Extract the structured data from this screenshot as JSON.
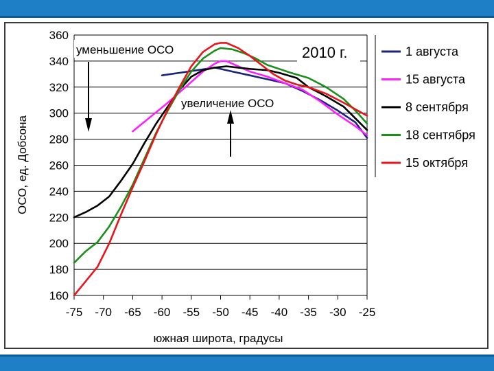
{
  "chart_data": {
    "type": "line",
    "xlabel": "южная широта, градусы",
    "ylabel": "ОСО, ед. Добсона",
    "xlim": [
      -75,
      -25
    ],
    "ylim": [
      160,
      360
    ],
    "x_ticks": [
      "-75",
      "-70",
      "-65",
      "-60",
      "-55",
      "-50",
      "-45",
      "-40",
      "-35",
      "-30",
      "-25"
    ],
    "y_ticks": [
      "160",
      "180",
      "200",
      "220",
      "240",
      "260",
      "280",
      "300",
      "320",
      "340",
      "360"
    ],
    "grid": "horizontal",
    "legend_position": "right",
    "year_label": "2010 г.",
    "annotations": {
      "decrease": "уменьшение ОСО",
      "increase": "увеличение ОСО"
    },
    "series": [
      {
        "name": "1 августа",
        "color": "#1a237e",
        "points": [
          [
            -60,
            329
          ],
          [
            -57,
            331
          ],
          [
            -54,
            333
          ],
          [
            -51,
            335
          ],
          [
            -48,
            332
          ],
          [
            -45,
            329
          ],
          [
            -42,
            326
          ],
          [
            -39,
            323
          ],
          [
            -36,
            317
          ],
          [
            -33,
            310
          ],
          [
            -30,
            302
          ],
          [
            -27,
            293
          ],
          [
            -25,
            281
          ]
        ]
      },
      {
        "name": "15 августа",
        "color": "#ff1fff",
        "points": [
          [
            -65,
            286
          ],
          [
            -62,
            297
          ],
          [
            -59,
            308
          ],
          [
            -56,
            320
          ],
          [
            -53,
            332
          ],
          [
            -51,
            338
          ],
          [
            -50,
            340
          ],
          [
            -49,
            340
          ],
          [
            -47,
            336
          ],
          [
            -45,
            332
          ],
          [
            -42,
            328
          ],
          [
            -39,
            323
          ],
          [
            -36,
            318
          ],
          [
            -33,
            309
          ],
          [
            -30,
            299
          ],
          [
            -27,
            290
          ],
          [
            -25,
            283
          ]
        ]
      },
      {
        "name": "8 сентября",
        "color": "#000000",
        "points": [
          [
            -75,
            220
          ],
          [
            -73,
            224
          ],
          [
            -71,
            229
          ],
          [
            -69,
            236
          ],
          [
            -67,
            248
          ],
          [
            -65,
            261
          ],
          [
            -63,
            277
          ],
          [
            -61,
            292
          ],
          [
            -59,
            305
          ],
          [
            -57,
            318
          ],
          [
            -55,
            328
          ],
          [
            -53,
            333
          ],
          [
            -51,
            335
          ],
          [
            -49,
            336
          ],
          [
            -47,
            335
          ],
          [
            -45,
            334
          ],
          [
            -42,
            333
          ],
          [
            -40,
            331
          ],
          [
            -37,
            327
          ],
          [
            -35,
            320
          ],
          [
            -32,
            313
          ],
          [
            -29,
            305
          ],
          [
            -25,
            287
          ]
        ]
      },
      {
        "name": "18 сентября",
        "color": "#1a8f1a",
        "points": [
          [
            -75,
            185
          ],
          [
            -73,
            194
          ],
          [
            -71,
            201
          ],
          [
            -69,
            213
          ],
          [
            -67,
            228
          ],
          [
            -65,
            245
          ],
          [
            -63,
            265
          ],
          [
            -61,
            285
          ],
          [
            -59,
            302
          ],
          [
            -57,
            318
          ],
          [
            -55,
            332
          ],
          [
            -53,
            342
          ],
          [
            -51,
            348
          ],
          [
            -50,
            350
          ],
          [
            -48,
            349
          ],
          [
            -46,
            346
          ],
          [
            -44,
            342
          ],
          [
            -42,
            337
          ],
          [
            -40,
            334
          ],
          [
            -38,
            331
          ],
          [
            -35,
            327
          ],
          [
            -32,
            320
          ],
          [
            -29,
            311
          ],
          [
            -27,
            302
          ],
          [
            -25,
            292
          ]
        ]
      },
      {
        "name": "15 октября",
        "color": "#e8141a",
        "points": [
          [
            -75,
            160
          ],
          [
            -73,
            171
          ],
          [
            -71,
            182
          ],
          [
            -69,
            200
          ],
          [
            -67,
            222
          ],
          [
            -65,
            243
          ],
          [
            -63,
            263
          ],
          [
            -61,
            284
          ],
          [
            -59,
            303
          ],
          [
            -57,
            320
          ],
          [
            -55,
            336
          ],
          [
            -53,
            347
          ],
          [
            -51,
            353
          ],
          [
            -50,
            354
          ],
          [
            -49,
            354
          ],
          [
            -47,
            350
          ],
          [
            -45,
            344
          ],
          [
            -43,
            337
          ],
          [
            -41,
            330
          ],
          [
            -39,
            325
          ],
          [
            -37,
            322
          ],
          [
            -35,
            320
          ],
          [
            -32,
            315
          ],
          [
            -29,
            308
          ],
          [
            -25,
            298
          ]
        ]
      }
    ]
  }
}
